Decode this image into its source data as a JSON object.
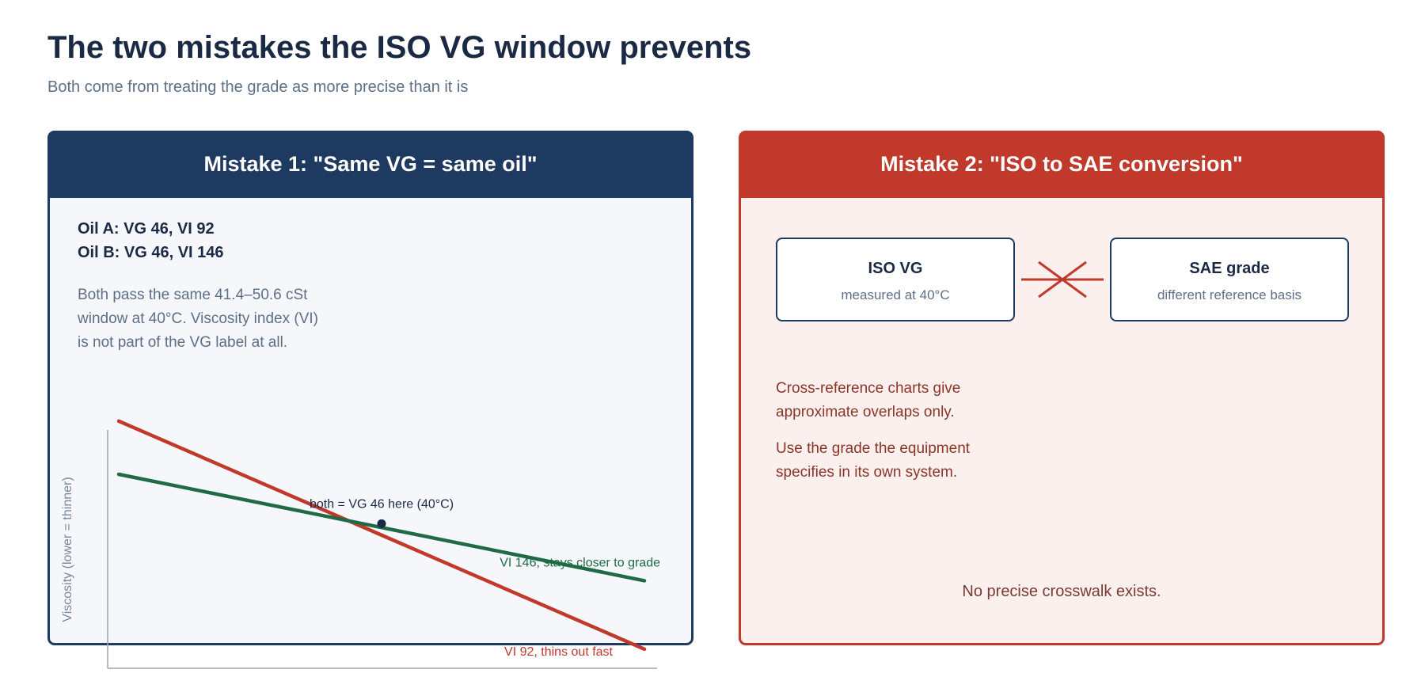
{
  "header": {
    "title": "The two mistakes the ISO VG window prevents",
    "subtitle": "Both come from treating the grade as more precise than it is"
  },
  "mistake1": {
    "title": "Mistake 1: \"Same VG = same oil\"",
    "oil_a": "Oil A: VG 46, VI 92",
    "oil_b": "Oil B: VG 46, VI 146",
    "explanation": [
      "Both pass the same 41.4–50.6 cSt",
      "window at 40°C. Viscosity index (VI)",
      "is not part of the VG label at all."
    ]
  },
  "mistake2": {
    "title": "Mistake 2: \"ISO to SAE conversion\"",
    "iso_box": {
      "title": "ISO VG",
      "subtitle": "measured at 40°C"
    },
    "sae_box": {
      "title": "SAE grade",
      "subtitle": "different reference basis"
    },
    "note1": [
      "Cross-reference charts give",
      "approximate overlaps only."
    ],
    "note2": [
      "Use the grade the equipment",
      "specifies in its own system."
    ],
    "conclusion": "No precise crosswalk exists."
  },
  "chart_data": {
    "type": "line",
    "ylabel": "Viscosity (lower = thinner)",
    "xlabel": "",
    "x_range": [
      0,
      10
    ],
    "y_range": [
      0,
      10
    ],
    "series": [
      {
        "name": "VI 92, thins out fast",
        "color": "#c0392b",
        "x": [
          0,
          10
        ],
        "y": [
          9.6,
          0.6
        ]
      },
      {
        "name": "VI 146, stays closer to grade",
        "color": "#1e6b45",
        "x": [
          0,
          10
        ],
        "y": [
          7.5,
          3.3
        ]
      }
    ],
    "annotation": {
      "text": "both = VG 46 here (40°C)",
      "x": 5,
      "y": 5.3
    }
  }
}
